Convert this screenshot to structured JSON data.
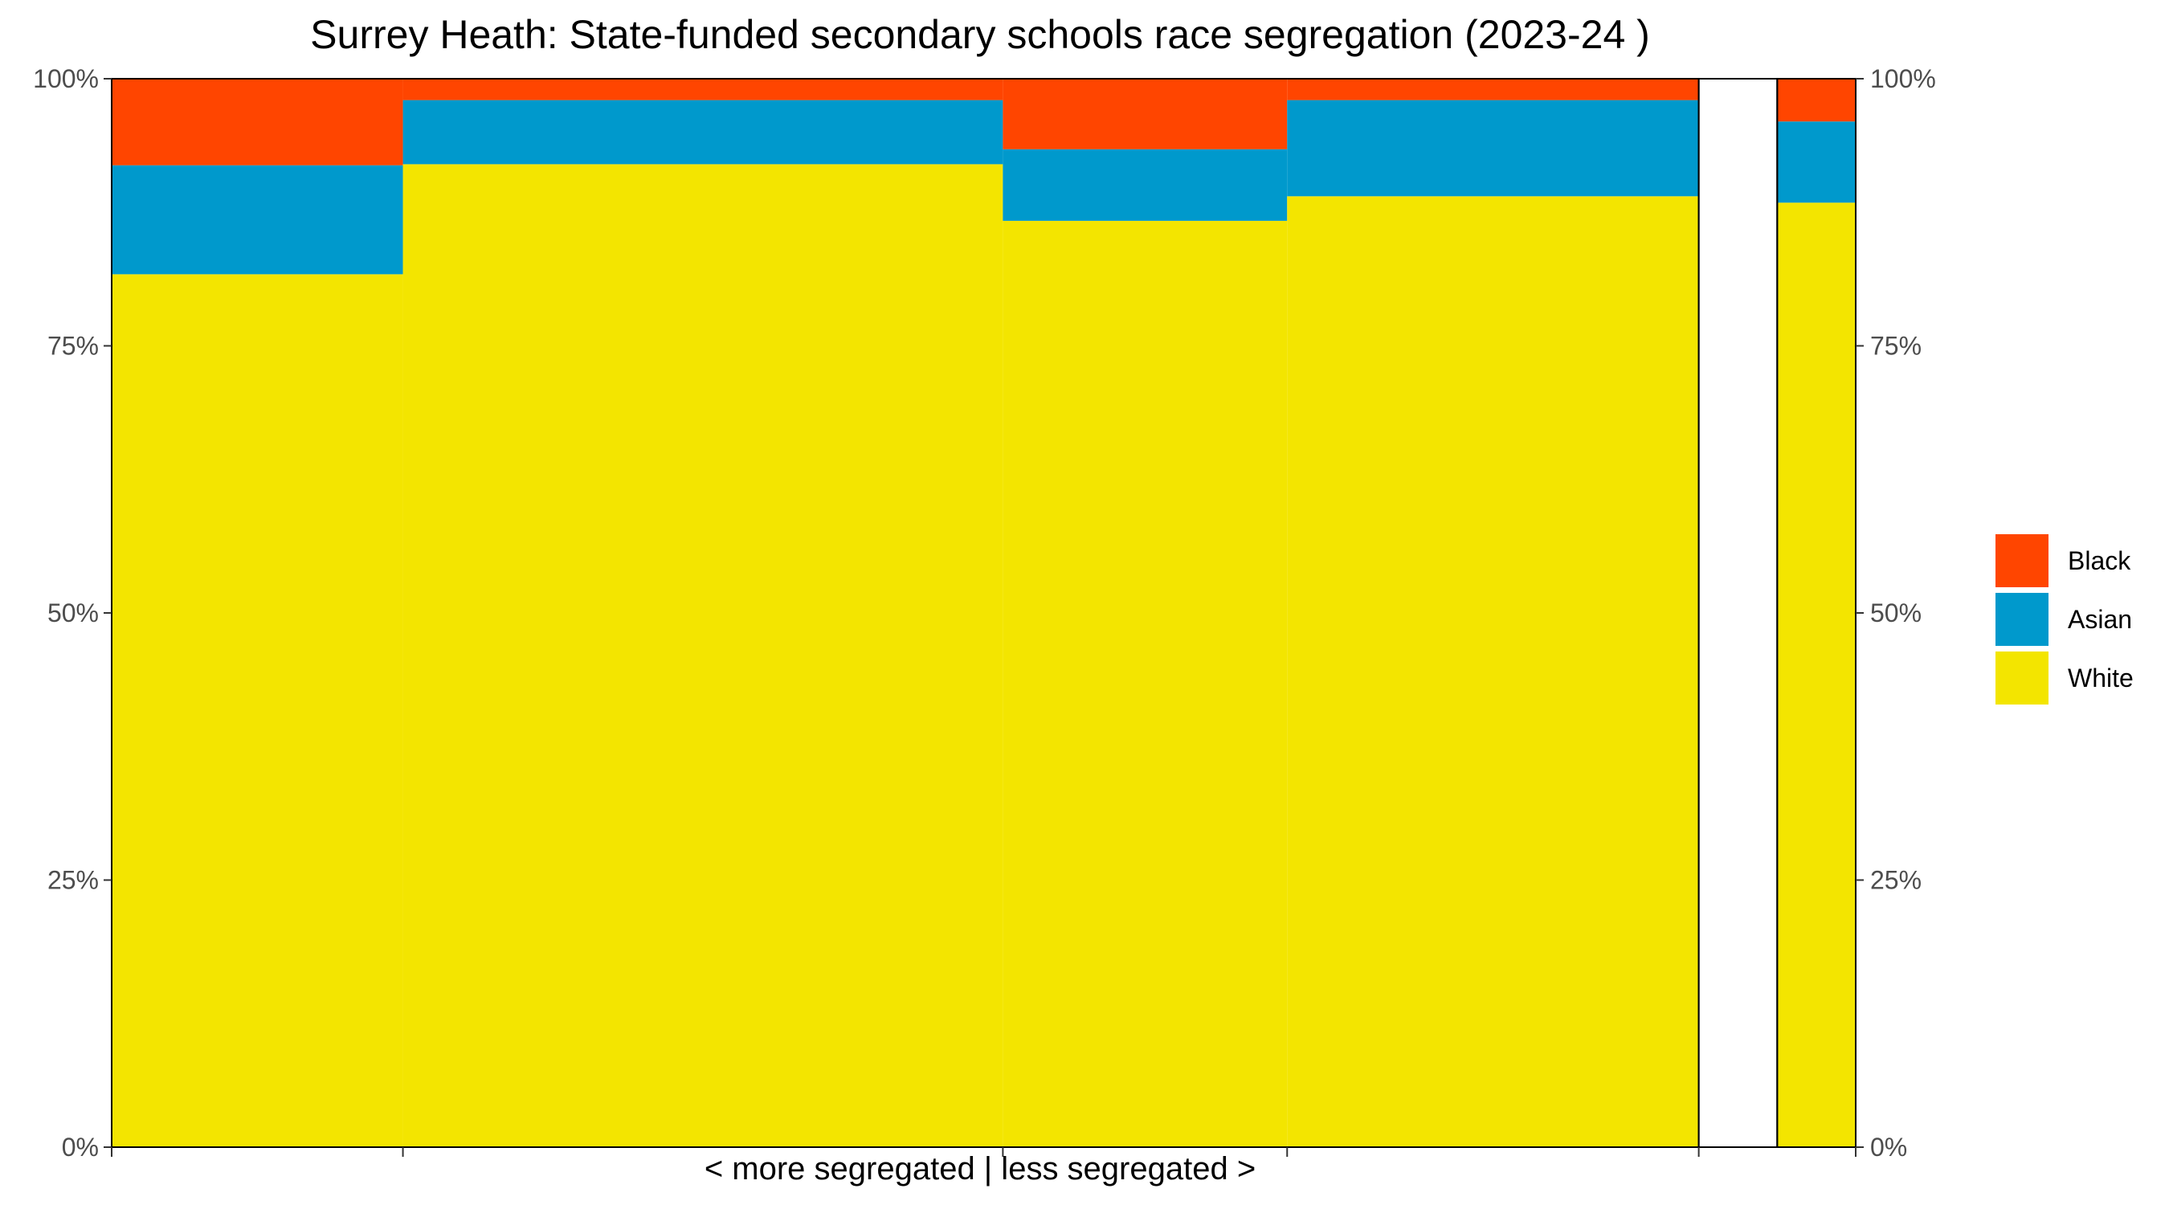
{
  "chart_data": {
    "type": "bar",
    "variant": "stacked-mosaic",
    "title": "Surrey Heath: State-funded secondary schools race segregation (2023-24 )",
    "xlabel": "< more segregated | less segregated >",
    "ylabel": "",
    "ylim": [
      0,
      1
    ],
    "y_ticks": [
      {
        "value": 0,
        "label": "0%"
      },
      {
        "value": 0.25,
        "label": "25%"
      },
      {
        "value": 0.5,
        "label": "50%"
      },
      {
        "value": 0.75,
        "label": "75%"
      },
      {
        "value": 1,
        "label": "100%"
      }
    ],
    "secondary_y_axis": true,
    "grid": false,
    "legend_position": "right",
    "colors": {
      "Black": "#FF4500",
      "Asian": "#0099CC",
      "White": "#F3E500"
    },
    "bar_order_bottom_to_top": [
      "White",
      "Asian",
      "Black"
    ],
    "legend_order": [
      "Black",
      "Asian",
      "White"
    ],
    "schools": [
      {
        "x_start": 0.0,
        "x_end": 0.167,
        "values": {
          "White": 0.817,
          "Asian": 0.102,
          "Black": 0.081
        }
      },
      {
        "x_start": 0.167,
        "x_end": 0.511,
        "values": {
          "White": 0.92,
          "Asian": 0.06,
          "Black": 0.02
        }
      },
      {
        "x_start": 0.511,
        "x_end": 0.674,
        "values": {
          "White": 0.867,
          "Asian": 0.067,
          "Black": 0.066
        }
      },
      {
        "x_start": 0.674,
        "x_end": 0.91,
        "values": {
          "White": 0.89,
          "Asian": 0.09,
          "Black": 0.02
        }
      }
    ],
    "overall": {
      "x_start": 0.955,
      "x_end": 1.0,
      "values": {
        "White": 0.884,
        "Asian": 0.076,
        "Black": 0.04
      }
    }
  }
}
